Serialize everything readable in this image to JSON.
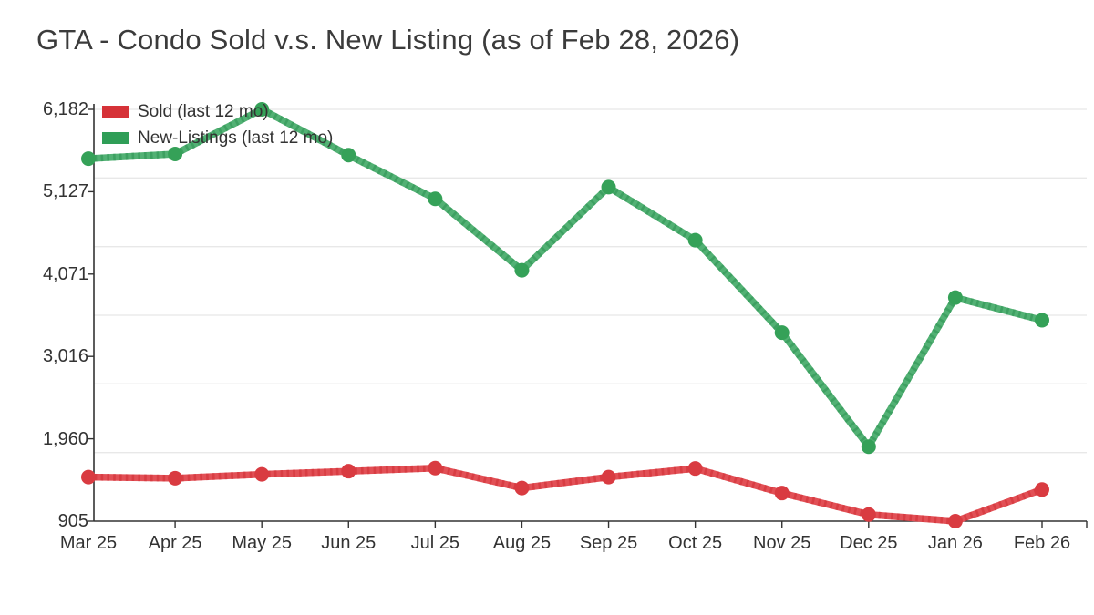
{
  "title": "GTA - Condo Sold v.s. New Listing (as of Feb 28, 2026)",
  "legend": {
    "items": [
      {
        "label": "Sold (last 12 mo)",
        "color": "#d63238"
      },
      {
        "label": "New-Listings (last 12 mo)",
        "color": "#2f9e57"
      }
    ]
  },
  "chart_data": {
    "type": "line",
    "title": "GTA - Condo Sold v.s. New Listing (as of Feb 28, 2026)",
    "categories": [
      "Mar 25",
      "Apr 25",
      "May 25",
      "Jun 25",
      "Jul 25",
      "Aug 25",
      "Sep 25",
      "Oct 25",
      "Nov 25",
      "Dec 25",
      "Jan 26",
      "Feb 26"
    ],
    "series": [
      {
        "name": "Sold (last 12 mo)",
        "color": "#e25056",
        "stripe_color": "#d63a40",
        "marker_color": "#d93b41",
        "values": [
          1470,
          1455,
          1505,
          1545,
          1585,
          1330,
          1470,
          1580,
          1265,
          990,
          905,
          1310
        ]
      },
      {
        "name": "New-Listings (last 12 mo)",
        "color": "#52b174",
        "stripe_color": "#3a9e5e",
        "marker_color": "#35a158",
        "values": [
          5550,
          5610,
          6182,
          5595,
          5035,
          4120,
          5185,
          4505,
          3320,
          1860,
          3770,
          3480
        ]
      }
    ],
    "yticks": [
      "6,182",
      "5,127",
      "4,071",
      "3,016",
      "1,960",
      "905"
    ],
    "ytick_values": [
      6182,
      5127,
      4071,
      3016,
      1960,
      905
    ],
    "ylim": [
      905,
      6182
    ],
    "grid": true,
    "grid_color": "#e8e8e8",
    "axis_color": "#333333",
    "legend_position": "top-left"
  }
}
